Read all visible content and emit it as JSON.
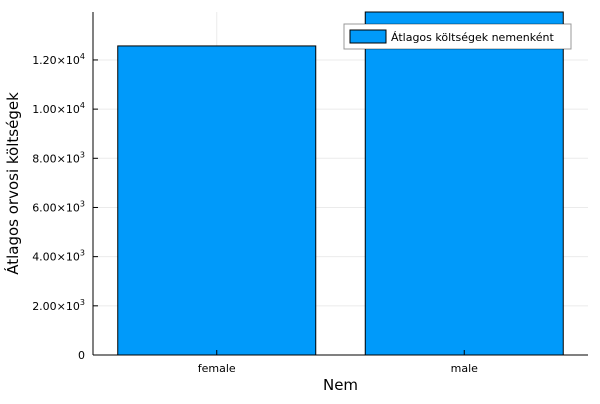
{
  "chart_data": {
    "type": "bar",
    "categories": [
      "female",
      "male"
    ],
    "series": [
      {
        "name": "Átlagos költségek nemenként",
        "values": [
          12570,
          13960
        ],
        "color": "#009AFA"
      }
    ],
    "xlabel": "Nem",
    "ylabel": "Átlagos orvosi költségek",
    "ylim": [
      0,
      13950
    ],
    "y_ticks": [
      {
        "value": 0,
        "mantissa": "0",
        "exponent": ""
      },
      {
        "value": 2000,
        "mantissa": "2.00×10",
        "exponent": "3"
      },
      {
        "value": 4000,
        "mantissa": "4.00×10",
        "exponent": "3"
      },
      {
        "value": 6000,
        "mantissa": "6.00×10",
        "exponent": "3"
      },
      {
        "value": 8000,
        "mantissa": "8.00×10",
        "exponent": "3"
      },
      {
        "value": 10000,
        "mantissa": "1.00×10",
        "exponent": "4"
      },
      {
        "value": 12000,
        "mantissa": "1.20×10",
        "exponent": "4"
      }
    ],
    "grid": true,
    "legend_position": "top-right",
    "colors": {
      "bar": "#009AFA",
      "bar_stroke": "#000000",
      "axis": "#000000"
    }
  }
}
